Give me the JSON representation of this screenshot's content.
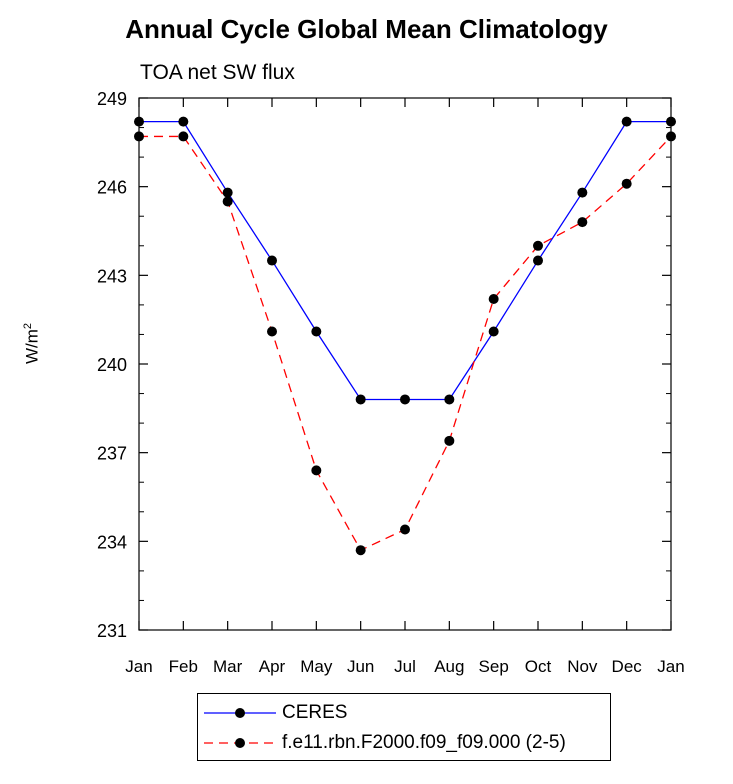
{
  "chart_data": {
    "type": "line",
    "title": "Annual Cycle Global Mean Climatology",
    "subtitle": "TOA net SW flux",
    "ylabel_base": "W/m",
    "ylabel_sup": "2",
    "xlabel": "",
    "categories": [
      "Jan",
      "Feb",
      "Mar",
      "Apr",
      "May",
      "Jun",
      "Jul",
      "Aug",
      "Sep",
      "Oct",
      "Nov",
      "Dec",
      "Jan"
    ],
    "ylim": [
      231,
      249
    ],
    "yticks": [
      231,
      234,
      237,
      240,
      243,
      246,
      249
    ],
    "series": [
      {
        "name": "CERES",
        "color": "#0000ff",
        "dash": "solid",
        "values": [
          248.2,
          248.2,
          245.8,
          243.5,
          241.1,
          238.8,
          238.8,
          238.8,
          241.1,
          243.5,
          245.8,
          248.2,
          248.2
        ]
      },
      {
        "name": "f.e11.rbn.F2000.f09_f09.000 (2-5)",
        "color": "#ff0000",
        "dash": "dashed",
        "values": [
          247.7,
          247.7,
          245.5,
          241.1,
          236.4,
          233.7,
          234.4,
          237.4,
          242.2,
          244.0,
          244.8,
          246.1,
          247.7
        ]
      }
    ],
    "legend_position": "bottom-center"
  }
}
